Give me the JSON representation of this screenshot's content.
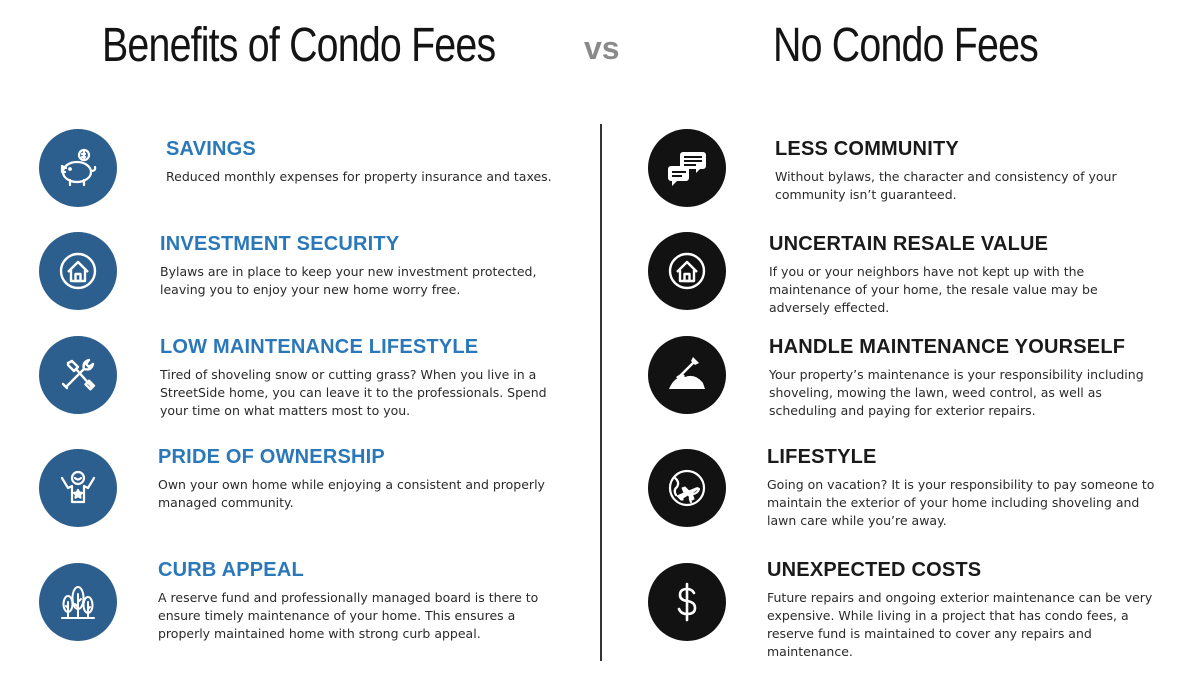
{
  "headings": {
    "left": "Benefits of Condo Fees",
    "vs": "vs",
    "right": "No Condo Fees"
  },
  "colors": {
    "benefit_circle": "#2d5f8e",
    "benefit_title": "#2a78b9",
    "drawback_circle": "#121212",
    "vs": "#8a8a8a"
  },
  "benefits": [
    {
      "icon": "piggy-bank-icon",
      "title": "SAVINGS",
      "text": "Reduced monthly expenses for property insurance and taxes."
    },
    {
      "icon": "house-icon",
      "title": "INVESTMENT SECURITY",
      "text": "Bylaws are in place to keep your new investment protected, leaving you to enjoy your new home worry free."
    },
    {
      "icon": "tools-icon",
      "title": "LOW MAINTENANCE LIFESTYLE",
      "text": "Tired of shoveling snow or cutting grass? When you live in a StreetSide home, you can leave it to the professionals. Spend your time on what matters most to you."
    },
    {
      "icon": "proud-person-icon",
      "title": "PRIDE OF OWNERSHIP",
      "text": "Own your own home while enjoying a consistent  and properly managed community."
    },
    {
      "icon": "trees-icon",
      "title": "CURB APPEAL",
      "text": "A reserve fund and professionally managed board  is there to ensure timely maintenance of your home.  This ensures a properly maintained home with  strong curb appeal."
    }
  ],
  "drawbacks": [
    {
      "icon": "chat-bubbles-icon",
      "title": "LESS COMMUNITY",
      "text": "Without bylaws, the character and consistency of your community isn’t guaranteed."
    },
    {
      "icon": "house-icon",
      "title": "UNCERTAIN RESALE VALUE",
      "text": "If you or your neighbors have not kept up with the maintenance of your home, the resale value may be adversely effected."
    },
    {
      "icon": "shovel-icon",
      "title": "HANDLE MAINTENANCE YOURSELF",
      "text": "Your property’s maintenance is your responsibility including shoveling, mowing the lawn, weed control,  as well as scheduling and paying for exterior repairs."
    },
    {
      "icon": "globe-plane-icon",
      "title": "LIFESTYLE",
      "text": "Going on vacation? It is your responsibility to pay someone to maintain the exterior of your home including shoveling and lawn care while you’re away."
    },
    {
      "icon": "dollar-icon",
      "title": "UNEXPECTED COSTS",
      "text": "Future repairs and ongoing exterior maintenance can be very expensive. While living in a project that has condo fees, a reserve fund is maintained to cover any repairs and maintenance."
    }
  ]
}
